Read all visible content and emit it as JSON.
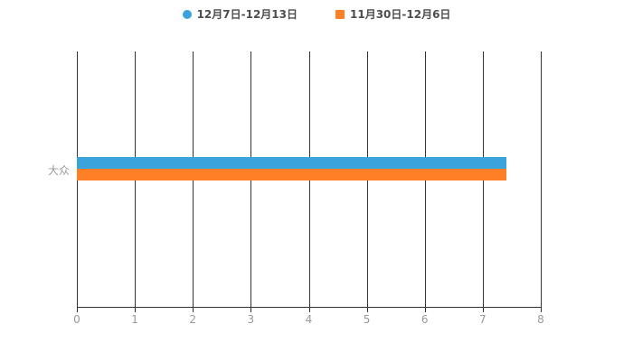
{
  "legend": {
    "position": "top",
    "items": [
      {
        "marker": "circle",
        "color": "#3BA3DC"
      },
      {
        "marker": "square",
        "color": "#FF7F27"
      }
    ]
  },
  "chart_data": {
    "type": "bar",
    "orientation": "horizontal",
    "title": "",
    "categories": [
      "大众"
    ],
    "series": [
      {
        "name": "12月7日-12月13日",
        "color": "#3BA3DC",
        "marker": "circle",
        "values": [
          7.4
        ]
      },
      {
        "name": "11月30日-12月6日",
        "color": "#FF7F27",
        "marker": "square",
        "values": [
          7.4
        ]
      }
    ],
    "xlim": [
      0,
      8
    ],
    "xticks": [
      0,
      1,
      2,
      3,
      4,
      5,
      6,
      7,
      8
    ],
    "grid": true,
    "grid_color": "#333333",
    "axis_label_color": "#999999",
    "background": "#ffffff",
    "legend_position": "top"
  }
}
